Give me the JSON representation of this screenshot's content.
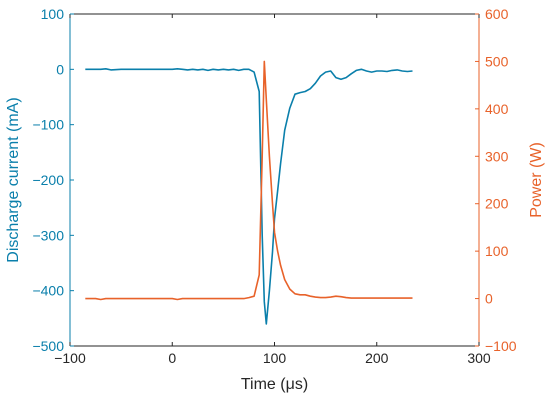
{
  "chart_data": {
    "type": "line",
    "xlabel": "Time (μs)",
    "ylabel_left": "Discharge current (mA)",
    "ylabel_right": "Power (W)",
    "xlim": [
      -100,
      300
    ],
    "ylim_left": [
      -500,
      100
    ],
    "ylim_right": [
      -100,
      600
    ],
    "x_ticks": [
      -100,
      0,
      100,
      200,
      300
    ],
    "x_tick_labels": [
      "−100",
      "0",
      "100",
      "200",
      "300"
    ],
    "y_left_ticks": [
      -500,
      -400,
      -300,
      -200,
      -100,
      0,
      100
    ],
    "y_left_tick_labels": [
      "−500",
      "−400",
      "−300",
      "−200",
      "−100",
      "0",
      "100"
    ],
    "y_right_ticks": [
      -100,
      0,
      100,
      200,
      300,
      400,
      500,
      600
    ],
    "y_right_tick_labels": [
      "−100",
      "0",
      "100",
      "200",
      "300",
      "400",
      "500",
      "600"
    ],
    "grid": false,
    "colors": {
      "left": "#0a7fab",
      "right": "#e8622a"
    },
    "series": [
      {
        "axis": "left",
        "x": [
          -85,
          -75,
          -70,
          -65,
          -60,
          -50,
          -40,
          -30,
          -20,
          -10,
          0,
          5,
          10,
          15,
          20,
          25,
          30,
          35,
          40,
          45,
          50,
          55,
          60,
          65,
          70,
          75,
          80,
          85,
          88,
          90,
          92,
          95,
          98,
          100,
          103,
          106,
          110,
          115,
          120,
          125,
          130,
          135,
          140,
          145,
          150,
          155,
          160,
          165,
          170,
          175,
          180,
          185,
          190,
          195,
          200,
          205,
          210,
          215,
          220,
          225,
          230,
          235
        ],
        "y": [
          0,
          0,
          0,
          1,
          -1,
          0,
          0,
          0,
          0,
          0,
          0,
          1,
          0,
          -1,
          0,
          -1,
          0,
          -2,
          0,
          -1,
          0,
          -1,
          0,
          -2,
          0,
          0,
          -5,
          -40,
          -300,
          -420,
          -460,
          -400,
          -330,
          -270,
          -220,
          -170,
          -110,
          -70,
          -45,
          -42,
          -40,
          -35,
          -25,
          -12,
          -5,
          -3,
          -15,
          -18,
          -15,
          -8,
          -2,
          0,
          -3,
          -5,
          -3,
          -3,
          -4,
          -2,
          -1,
          -3,
          -4,
          -3
        ]
      },
      {
        "axis": "right",
        "x": [
          -85,
          -75,
          -70,
          -65,
          -60,
          -50,
          -40,
          -30,
          -20,
          -10,
          0,
          5,
          10,
          15,
          20,
          25,
          30,
          35,
          40,
          45,
          50,
          55,
          60,
          65,
          70,
          75,
          80,
          85,
          88,
          90,
          92,
          95,
          98,
          100,
          103,
          106,
          110,
          115,
          120,
          125,
          130,
          135,
          140,
          145,
          150,
          155,
          160,
          165,
          170,
          175,
          180,
          185,
          190,
          195,
          200,
          205,
          210,
          215,
          220,
          225,
          230,
          235
        ],
        "y": [
          0,
          0,
          -2,
          0,
          0,
          0,
          0,
          0,
          0,
          0,
          0,
          -2,
          0,
          0,
          0,
          0,
          0,
          0,
          0,
          0,
          0,
          0,
          0,
          0,
          0,
          2,
          5,
          50,
          300,
          500,
          420,
          300,
          200,
          140,
          100,
          70,
          40,
          20,
          10,
          8,
          8,
          5,
          3,
          2,
          2,
          3,
          5,
          4,
          2,
          1,
          1,
          1,
          1,
          1,
          1,
          1,
          1,
          1,
          1,
          1,
          1,
          1
        ]
      }
    ]
  }
}
